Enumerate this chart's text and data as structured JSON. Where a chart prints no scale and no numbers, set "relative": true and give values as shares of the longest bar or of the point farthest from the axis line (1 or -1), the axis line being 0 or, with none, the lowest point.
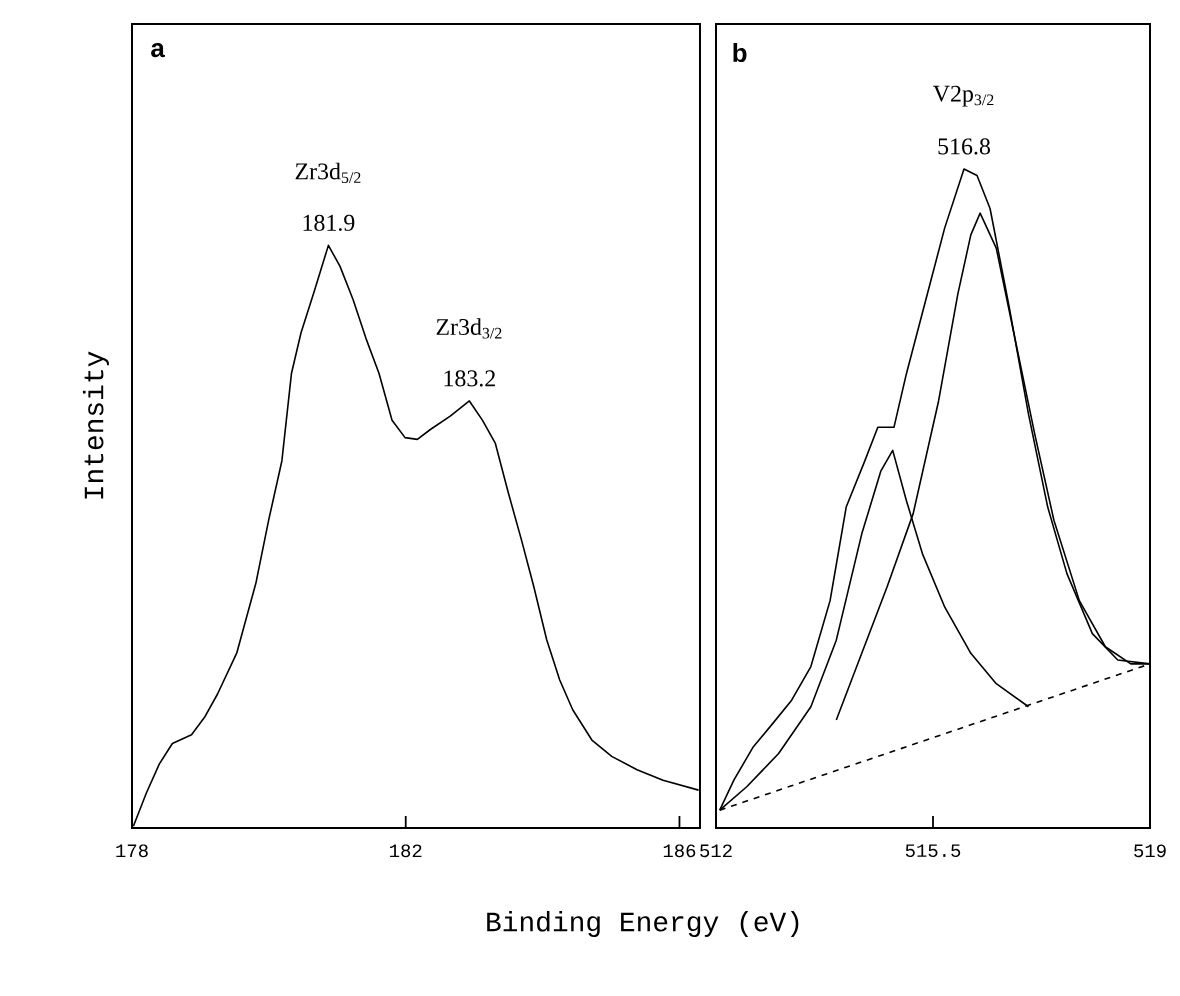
{
  "chart_data": [
    {
      "type": "line",
      "title": "a",
      "xlabel": "Binding Energy (eV)",
      "ylabel": "Intensity",
      "relative": true,
      "tick_labels": "x",
      "xlim": [
        178,
        186.3
      ],
      "xticks": [
        178,
        182,
        186
      ],
      "series": [
        {
          "color": "#000000",
          "x": [
            178.02,
            178.21,
            178.4,
            178.59,
            178.87,
            179.06,
            179.25,
            179.53,
            179.81,
            180.0,
            180.19,
            180.33,
            180.47,
            180.66,
            180.87,
            181.04,
            181.23,
            181.42,
            181.61,
            181.8,
            181.99,
            182.17,
            182.36,
            182.65,
            182.93,
            183.12,
            183.31,
            183.5,
            183.69,
            183.87,
            184.06,
            184.25,
            184.44,
            184.72,
            185.01,
            185.38,
            185.76,
            186.28
          ],
          "values": [
            0.003,
            0.06,
            0.11,
            0.145,
            0.16,
            0.19,
            0.23,
            0.3,
            0.42,
            0.53,
            0.63,
            0.78,
            0.85,
            0.92,
            1.0,
            0.964,
            0.907,
            0.84,
            0.78,
            0.7,
            0.67,
            0.667,
            0.684,
            0.707,
            0.733,
            0.7,
            0.66,
            0.575,
            0.495,
            0.415,
            0.323,
            0.254,
            0.203,
            0.151,
            0.123,
            0.1,
            0.082,
            0.065
          ]
        }
      ],
      "annotations": [
        {
          "text": "181.9",
          "x": 180.87,
          "y": 1.0
        },
        {
          "text": "Zr3d$_{5/2}$",
          "x": 180.87,
          "y": 1.0
        },
        {
          "text": "183.2",
          "x": 182.93,
          "y": 0.733
        },
        {
          "text": "Zr3d$_{3/2}$",
          "x": 182.93,
          "y": 0.733
        }
      ]
    },
    {
      "type": "line",
      "title": "b",
      "relative": true,
      "tick_labels": "x",
      "xlim": [
        512,
        519
      ],
      "xticks": [
        512,
        515.5,
        519
      ],
      "series": [
        {
          "color": "#000000",
          "x": [
            512.06,
            512.29,
            512.6,
            512.91,
            513.22,
            513.53,
            513.84,
            514.1,
            514.4,
            514.61,
            514.87,
            515.07,
            515.38,
            515.69,
            516.0,
            516.21,
            516.42,
            516.73,
            517.04,
            517.35,
            517.66,
            518.07,
            518.48,
            519.0
          ],
          "values": [
            0.027,
            0.073,
            0.123,
            0.158,
            0.194,
            0.245,
            0.345,
            0.487,
            0.557,
            0.608,
            0.608,
            0.689,
            0.8,
            0.911,
            1.0,
            0.99,
            0.94,
            0.79,
            0.628,
            0.487,
            0.386,
            0.295,
            0.255,
            0.249
          ]
        },
        {
          "color": "#000000",
          "x": [
            512.06,
            512.5,
            513.01,
            513.53,
            513.94,
            514.35,
            514.66,
            514.85,
            515.07,
            515.33,
            515.69,
            516.11,
            516.52,
            517.04
          ],
          "values": [
            0.027,
            0.063,
            0.113,
            0.184,
            0.285,
            0.446,
            0.542,
            0.573,
            0.497,
            0.416,
            0.335,
            0.265,
            0.219,
            0.184
          ]
        },
        {
          "color": "#000000",
          "x": [
            513.94,
            514.35,
            514.76,
            515.18,
            515.59,
            515.9,
            516.11,
            516.26,
            516.52,
            516.83,
            517.14,
            517.45,
            517.86,
            518.28,
            518.69,
            519.0
          ],
          "values": [
            0.164,
            0.265,
            0.366,
            0.477,
            0.648,
            0.81,
            0.9,
            0.933,
            0.88,
            0.739,
            0.598,
            0.467,
            0.345,
            0.275,
            0.249,
            0.249
          ]
        },
        {
          "color": "#000000",
          "line_style": "dashed",
          "x": [
            512.06,
            519.0
          ],
          "values": [
            0.027,
            0.249
          ]
        }
      ],
      "annotations": [
        {
          "text": "516.8",
          "x": 516.0,
          "y": 1.0
        },
        {
          "text": "V2p$_{3/2}$",
          "x": 516.0,
          "y": 1.0
        }
      ]
    }
  ]
}
